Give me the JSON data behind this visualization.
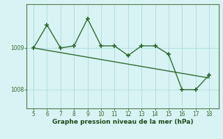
{
  "x": [
    5,
    6,
    7,
    8,
    9,
    10,
    11,
    12,
    13,
    14,
    15,
    16,
    17,
    18
  ],
  "y": [
    1009.0,
    1009.55,
    1009.0,
    1009.05,
    1009.7,
    1009.05,
    1009.05,
    1008.82,
    1009.05,
    1009.05,
    1008.85,
    1008.0,
    1008.0,
    1008.35
  ],
  "trend_x": [
    5,
    18
  ],
  "trend_y": [
    1009.0,
    1008.28
  ],
  "line_color": "#2d6a2d",
  "marker": "+",
  "markersize": 5,
  "linewidth": 1.0,
  "markeredgewidth": 1.3,
  "xlabel": "Graphe pression niveau de la mer (hPa)",
  "xlabel_color": "#1a4a1a",
  "xlabel_fontsize": 6.5,
  "yticks": [
    1008,
    1009
  ],
  "xticks": [
    5,
    6,
    7,
    8,
    9,
    10,
    11,
    12,
    13,
    14,
    15,
    16,
    17,
    18
  ],
  "xlim": [
    4.5,
    18.7
  ],
  "ylim": [
    1007.55,
    1010.05
  ],
  "bg_color": "#d8f3f3",
  "grid_color": "#b0dede",
  "tick_color": "#2d6a2d",
  "tick_fontsize": 5.5,
  "spine_color": "#4a7a4a"
}
